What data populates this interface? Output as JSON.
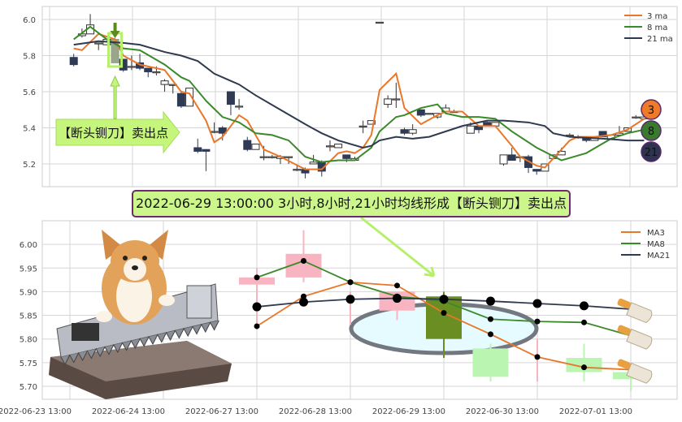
{
  "banner": "2022-06-29 13:00:00 3小时,8小时,21小时均线形成【断头铡刀】卖出点",
  "annotation": "【断头铡刀】卖出点",
  "badges": [
    {
      "label": "3",
      "color": "#f07a28"
    },
    {
      "label": "8",
      "color": "#3a7a2e"
    },
    {
      "label": "21",
      "color": "#2e3350"
    }
  ],
  "colors": {
    "ma3": "#e8772a",
    "ma8": "#3a8a2a",
    "ma21": "#2f3a4f",
    "bear": "#2f3a55",
    "up_pink": "#f8b4c0",
    "down_green": "#baf5b2",
    "signal": "#6b8e23",
    "annotation_fill": "#c6f57c"
  },
  "icons": [
    "corgi-image",
    "guillotine-saw-image",
    "kitchen-knife-icon",
    "down-arrow-icon",
    "up-arrow-icon",
    "right-arrow-icon"
  ],
  "chart_data": [
    {
      "type": "candlestick",
      "ylim": [
        5.1,
        6.05
      ],
      "yticks": [
        "6.0",
        "5.8",
        "5.6",
        "5.4",
        "5.2"
      ],
      "grid": true,
      "legend_placement": "top-right",
      "legend": [
        "3 ma",
        "8 ma",
        "21 ma"
      ],
      "signal_index": 5,
      "ohlc": [
        [
          5.79,
          5.81,
          5.74,
          5.75
        ],
        [
          5.91,
          5.95,
          5.9,
          5.92
        ],
        [
          5.92,
          6.03,
          5.92,
          5.97
        ],
        [
          5.87,
          5.87,
          5.83,
          5.87
        ],
        [
          5.86,
          5.89,
          5.86,
          5.89
        ],
        [
          5.89,
          5.9,
          5.76,
          5.76
        ],
        [
          5.78,
          5.78,
          5.71,
          5.72
        ],
        [
          5.74,
          5.8,
          5.72,
          5.74
        ],
        [
          5.76,
          5.81,
          5.72,
          5.73
        ],
        [
          5.73,
          5.73,
          5.68,
          5.71
        ],
        [
          5.71,
          5.74,
          5.69,
          5.71
        ],
        [
          5.64,
          5.67,
          5.6,
          5.66
        ],
        [
          5.64,
          5.64,
          5.59,
          5.64
        ],
        [
          5.59,
          5.6,
          5.51,
          5.52
        ],
        [
          5.52,
          5.62,
          5.52,
          5.62
        ],
        [
          5.29,
          5.34,
          5.26,
          5.27
        ],
        [
          5.28,
          5.28,
          5.16,
          5.27
        ],
        [
          5.38,
          5.43,
          5.37,
          5.38
        ],
        [
          5.4,
          5.41,
          5.33,
          5.37
        ],
        [
          5.6,
          5.6,
          5.47,
          5.53
        ],
        [
          5.52,
          5.56,
          5.5,
          5.52
        ],
        [
          5.33,
          5.35,
          5.27,
          5.28
        ],
        [
          5.28,
          5.31,
          5.28,
          5.31
        ],
        [
          5.24,
          5.3,
          5.22,
          5.24
        ],
        [
          5.24,
          5.25,
          5.23,
          5.24
        ],
        [
          5.23,
          5.25,
          5.2,
          5.24
        ],
        [
          5.24,
          5.24,
          5.2,
          5.24
        ],
        [
          5.17,
          5.19,
          5.16,
          5.17
        ],
        [
          5.17,
          5.18,
          5.12,
          5.15
        ],
        [
          5.2,
          5.25,
          5.2,
          5.21
        ],
        [
          5.21,
          5.22,
          5.13,
          5.16
        ],
        [
          5.3,
          5.33,
          5.27,
          5.3
        ],
        [
          5.29,
          5.31,
          5.29,
          5.31
        ],
        [
          5.25,
          5.25,
          5.21,
          5.23
        ],
        [
          5.22,
          5.24,
          5.22,
          5.23
        ],
        [
          5.41,
          5.44,
          5.37,
          5.41
        ],
        [
          5.42,
          5.44,
          5.42,
          5.44
        ],
        [
          5.985,
          5.985,
          5.985,
          5.985
        ],
        [
          5.53,
          5.58,
          5.51,
          5.56
        ],
        [
          5.56,
          5.65,
          5.51,
          5.56
        ],
        [
          5.39,
          5.4,
          5.36,
          5.37
        ],
        [
          5.37,
          5.42,
          5.36,
          5.39
        ],
        [
          5.5,
          5.5,
          5.46,
          5.47
        ],
        [
          5.48,
          5.48,
          5.48,
          5.48
        ],
        [
          5.46,
          5.48,
          5.45,
          5.48
        ],
        [
          5.49,
          5.53,
          5.48,
          5.51
        ],
        [
          5.49,
          5.5,
          5.49,
          5.49
        ],
        null,
        [
          5.37,
          5.43,
          5.37,
          5.41
        ],
        [
          5.41,
          5.41,
          5.37,
          5.39
        ],
        [
          5.43,
          5.44,
          5.41,
          5.41
        ],
        [
          5.41,
          5.43,
          5.41,
          5.43
        ],
        [
          5.2,
          5.25,
          5.19,
          5.25
        ],
        [
          5.25,
          5.29,
          5.22,
          5.22
        ],
        [
          5.24,
          5.24,
          5.21,
          5.24
        ],
        [
          5.24,
          5.25,
          5.15,
          5.18
        ],
        [
          5.17,
          5.17,
          5.14,
          5.16
        ],
        [
          5.16,
          5.2,
          5.16,
          5.2
        ],
        [
          5.23,
          5.25,
          5.23,
          5.25
        ],
        [
          5.25,
          5.29,
          5.25,
          5.27
        ],
        [
          5.36,
          5.37,
          5.35,
          5.36
        ],
        [
          5.35,
          5.36,
          5.34,
          5.35
        ],
        [
          5.35,
          5.35,
          5.32,
          5.33
        ],
        [
          5.33,
          5.35,
          5.33,
          5.35
        ],
        [
          5.38,
          5.38,
          5.35,
          5.35
        ],
        [
          5.34,
          5.36,
          5.34,
          5.36
        ],
        [
          5.36,
          5.41,
          5.36,
          5.37
        ],
        [
          5.38,
          5.4,
          5.38,
          5.4
        ],
        [
          5.46,
          5.47,
          5.45,
          5.46
        ],
        [
          5.45,
          5.46,
          5.45,
          5.46
        ]
      ],
      "series": [
        {
          "name": "3 ma",
          "points": [
            [
              0,
              5.84
            ],
            [
              1,
              5.83
            ],
            [
              3,
              5.92
            ],
            [
              5,
              5.89
            ],
            [
              6,
              5.8
            ],
            [
              8,
              5.75
            ],
            [
              11,
              5.72
            ],
            [
              13,
              5.6
            ],
            [
              14,
              5.59
            ],
            [
              16,
              5.44
            ],
            [
              17,
              5.32
            ],
            [
              18,
              5.35
            ],
            [
              20,
              5.47
            ],
            [
              21,
              5.44
            ],
            [
              23,
              5.28
            ],
            [
              25,
              5.24
            ],
            [
              28,
              5.17
            ],
            [
              30,
              5.17
            ],
            [
              32,
              5.26
            ],
            [
              33,
              5.27
            ],
            [
              34,
              5.26
            ],
            [
              35,
              5.29
            ],
            [
              36,
              5.36
            ],
            [
              37,
              5.61
            ],
            [
              39,
              5.7
            ],
            [
              40,
              5.51
            ],
            [
              42,
              5.42
            ],
            [
              44,
              5.47
            ],
            [
              45,
              5.49
            ],
            [
              47,
              5.49
            ],
            [
              49,
              5.41
            ],
            [
              50,
              5.41
            ],
            [
              51,
              5.41
            ],
            [
              53,
              5.3
            ],
            [
              54,
              5.24
            ],
            [
              56,
              5.19
            ],
            [
              57,
              5.18
            ],
            [
              58,
              5.23
            ],
            [
              60,
              5.33
            ],
            [
              61,
              5.35
            ],
            [
              63,
              5.35
            ],
            [
              65,
              5.36
            ],
            [
              67,
              5.39
            ],
            [
              69,
              5.45
            ]
          ]
        },
        {
          "name": "8 ma",
          "points": [
            [
              0,
              5.89
            ],
            [
              2,
              5.96
            ],
            [
              4,
              5.89
            ],
            [
              6,
              5.84
            ],
            [
              8,
              5.83
            ],
            [
              11,
              5.75
            ],
            [
              13,
              5.68
            ],
            [
              14,
              5.66
            ],
            [
              16,
              5.55
            ],
            [
              18,
              5.46
            ],
            [
              20,
              5.43
            ],
            [
              22,
              5.37
            ],
            [
              24,
              5.36
            ],
            [
              26,
              5.33
            ],
            [
              28,
              5.24
            ],
            [
              30,
              5.21
            ],
            [
              32,
              5.22
            ],
            [
              34,
              5.22
            ],
            [
              36,
              5.29
            ],
            [
              37,
              5.38
            ],
            [
              39,
              5.46
            ],
            [
              40,
              5.47
            ],
            [
              42,
              5.51
            ],
            [
              44,
              5.53
            ],
            [
              45,
              5.48
            ],
            [
              47,
              5.46
            ],
            [
              49,
              5.46
            ],
            [
              51,
              5.45
            ],
            [
              53,
              5.38
            ],
            [
              56,
              5.29
            ],
            [
              59,
              5.22
            ],
            [
              62,
              5.26
            ],
            [
              65,
              5.34
            ],
            [
              67,
              5.37
            ],
            [
              69,
              5.39
            ]
          ]
        },
        {
          "name": "21 ma",
          "points": [
            [
              0,
              5.86
            ],
            [
              3,
              5.88
            ],
            [
              6,
              5.87
            ],
            [
              8,
              5.86
            ],
            [
              11,
              5.82
            ],
            [
              13,
              5.8
            ],
            [
              15,
              5.77
            ],
            [
              17,
              5.7
            ],
            [
              19,
              5.66
            ],
            [
              20,
              5.64
            ],
            [
              22,
              5.58
            ],
            [
              25,
              5.5
            ],
            [
              28,
              5.42
            ],
            [
              30,
              5.37
            ],
            [
              32,
              5.33
            ],
            [
              35,
              5.29
            ],
            [
              36,
              5.3
            ],
            [
              37,
              5.33
            ],
            [
              39,
              5.35
            ],
            [
              41,
              5.34
            ],
            [
              43,
              5.35
            ],
            [
              47,
              5.41
            ],
            [
              50,
              5.44
            ],
            [
              52,
              5.44
            ],
            [
              55,
              5.43
            ],
            [
              57,
              5.41
            ],
            [
              58,
              5.37
            ],
            [
              60,
              5.35
            ],
            [
              64,
              5.34
            ],
            [
              67,
              5.33
            ],
            [
              69,
              5.33
            ]
          ]
        }
      ]
    },
    {
      "type": "candlestick",
      "ylim": [
        5.67,
        6.05
      ],
      "yticks": [
        "6.00",
        "5.95",
        "5.90",
        "5.85",
        "5.80",
        "5.75",
        "5.70"
      ],
      "xticks": [
        "2022-06-23 13:00",
        "2022-06-24 13:00",
        "2022-06-27 13:00",
        "2022-06-28 13:00",
        "2022-06-29 13:00",
        "2022-06-30 13:00",
        "2022-07-01 13:00"
      ],
      "grid": true,
      "legend_placement": "top-right",
      "legend": [
        "MA3",
        "MA8",
        "MA21"
      ],
      "signal_index": 4,
      "candles": [
        {
          "ohlc": [
            5.915,
            5.95,
            5.82,
            5.93
          ],
          "kind": "up"
        },
        {
          "ohlc": [
            5.93,
            6.03,
            5.92,
            5.98
          ],
          "kind": "up"
        },
        {
          "ohlc": [
            5.9,
            5.9,
            5.83,
            5.9
          ],
          "kind": "up"
        },
        {
          "ohlc": [
            5.86,
            5.9,
            5.84,
            5.9
          ],
          "kind": "up"
        },
        {
          "ohlc": [
            5.89,
            5.9,
            5.76,
            5.8
          ],
          "kind": "signal"
        },
        {
          "ohlc": [
            5.78,
            5.79,
            5.71,
            5.72
          ],
          "kind": "down"
        },
        {
          "ohlc": [
            5.8,
            5.8,
            5.71,
            5.8
          ],
          "kind": "up"
        },
        {
          "ohlc": [
            5.76,
            5.79,
            5.71,
            5.73
          ],
          "kind": "down"
        },
        {
          "ohlc": [
            5.73,
            5.73,
            5.69,
            5.715
          ],
          "kind": "down"
        }
      ],
      "series": [
        {
          "name": "MA3",
          "values": [
            5.827,
            5.89,
            5.92,
            5.913,
            5.855,
            5.81,
            5.762,
            5.74,
            5.735
          ]
        },
        {
          "name": "MA8",
          "values": [
            5.93,
            5.965,
            5.92,
            5.89,
            5.88,
            5.842,
            5.837,
            5.835,
            5.807
          ]
        },
        {
          "name": "MA21",
          "values": [
            5.868,
            5.878,
            5.884,
            5.886,
            5.884,
            5.88,
            5.875,
            5.87,
            5.863
          ]
        }
      ]
    }
  ]
}
